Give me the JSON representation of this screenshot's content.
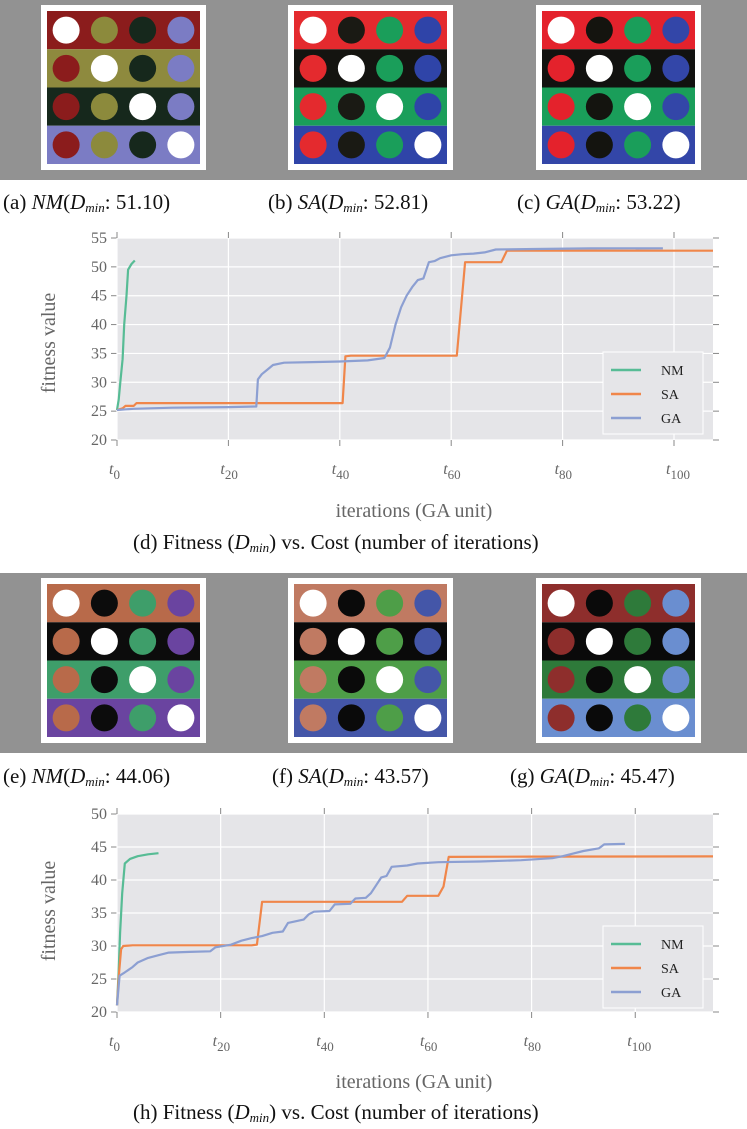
{
  "top": {
    "panels": [
      {
        "id": "a",
        "prefix": "(a) ",
        "method": "NM",
        "dmin": ": 51.10)",
        "rows": [
          {
            "bg": "#8B1C1C",
            "circles": [
              "#FFFFFF",
              "#8C8A3C",
              "#16281C",
              "#7B7CC4"
            ]
          },
          {
            "bg": "#8E8A3E",
            "circles": [
              "#8B1C1C",
              "#FFFFFF",
              "#16281C",
              "#7B7CC4"
            ]
          },
          {
            "bg": "#16281C",
            "circles": [
              "#8B1C1C",
              "#8C8A3C",
              "#FFFFFF",
              "#7B7CC4"
            ]
          },
          {
            "bg": "#7B7CC4",
            "circles": [
              "#8B1C1C",
              "#8C8A3C",
              "#16281C",
              "#FFFFFF"
            ]
          }
        ]
      },
      {
        "id": "b",
        "prefix": "(b) ",
        "method": "SA",
        "dmin": ": 52.81)",
        "rows": [
          {
            "bg": "#E42A2E",
            "circles": [
              "#FFFFFF",
              "#1A1A14",
              "#1A9E5A",
              "#2F44A8"
            ]
          },
          {
            "bg": "#141410",
            "circles": [
              "#E42A2E",
              "#FFFFFF",
              "#1A9E5A",
              "#2F44A8"
            ]
          },
          {
            "bg": "#1A9E5A",
            "circles": [
              "#E42A2E",
              "#1A1A14",
              "#FFFFFF",
              "#2F44A8"
            ]
          },
          {
            "bg": "#2F44A8",
            "circles": [
              "#E42A2E",
              "#1A1A14",
              "#1A9E5A",
              "#FFFFFF"
            ]
          }
        ]
      },
      {
        "id": "c",
        "prefix": "(c) ",
        "method": "GA",
        "dmin": ": 53.22)",
        "rows": [
          {
            "bg": "#E4222C",
            "circles": [
              "#FFFFFF",
              "#14140F",
              "#1A9E5A",
              "#3346A8"
            ]
          },
          {
            "bg": "#121210",
            "circles": [
              "#E4222C",
              "#FFFFFF",
              "#1A9E5A",
              "#3346A8"
            ]
          },
          {
            "bg": "#1A9E5A",
            "circles": [
              "#E4222C",
              "#14140F",
              "#FFFFFF",
              "#3346A8"
            ]
          },
          {
            "bg": "#3346A8",
            "circles": [
              "#E4222C",
              "#14140F",
              "#1A9E5A",
              "#FFFFFF"
            ]
          }
        ]
      }
    ]
  },
  "bottom": {
    "panels": [
      {
        "id": "e",
        "prefix": "(e) ",
        "method": "NM",
        "dmin": ": 44.06)",
        "rows": [
          {
            "bg": "#B86A4A",
            "circles": [
              "#FFFFFF",
              "#0C0C0C",
              "#3E9E6A",
              "#6A44A0"
            ]
          },
          {
            "bg": "#0C0C0C",
            "circles": [
              "#B86A4A",
              "#FFFFFF",
              "#3E9E6A",
              "#6A44A0"
            ]
          },
          {
            "bg": "#3E9E6A",
            "circles": [
              "#B86A4A",
              "#0C0C0C",
              "#FFFFFF",
              "#6A44A0"
            ]
          },
          {
            "bg": "#6A44A0",
            "circles": [
              "#B86A4A",
              "#0C0C0C",
              "#3E9E6A",
              "#FFFFFF"
            ]
          }
        ]
      },
      {
        "id": "f",
        "prefix": "(f) ",
        "method": "SA",
        "dmin": ": 43.57)",
        "rows": [
          {
            "bg": "#C07A62",
            "circles": [
              "#FFFFFF",
              "#0A0A0A",
              "#4E9E48",
              "#4456A8"
            ]
          },
          {
            "bg": "#0A0A0A",
            "circles": [
              "#C07A62",
              "#FFFFFF",
              "#4E9E48",
              "#4456A8"
            ]
          },
          {
            "bg": "#4E9E48",
            "circles": [
              "#C07A62",
              "#0A0A0A",
              "#FFFFFF",
              "#4456A8"
            ]
          },
          {
            "bg": "#4456A8",
            "circles": [
              "#C07A62",
              "#0A0A0A",
              "#4E9E48",
              "#FFFFFF"
            ]
          }
        ]
      },
      {
        "id": "g",
        "prefix": "(g) ",
        "method": "GA",
        "dmin": ": 45.47)",
        "rows": [
          {
            "bg": "#8E2E2C",
            "circles": [
              "#FFFFFF",
              "#0A0A0A",
              "#2E7A3A",
              "#6A8ED0"
            ]
          },
          {
            "bg": "#0A0A0A",
            "circles": [
              "#8E2E2C",
              "#FFFFFF",
              "#2E7A3A",
              "#6A8ED0"
            ]
          },
          {
            "bg": "#2E7A3A",
            "circles": [
              "#8E2E2C",
              "#0A0A0A",
              "#FFFFFF",
              "#6A8ED0"
            ]
          },
          {
            "bg": "#6A8ED0",
            "circles": [
              "#8E2E2C",
              "#0A0A0A",
              "#2E7A3A",
              "#FFFFFF"
            ]
          }
        ]
      }
    ]
  },
  "captions": {
    "d": {
      "prefix": "(d) Fitness (",
      "sym": "D",
      "sub": "min",
      "suffix": ") vs. Cost (number of iterations)"
    },
    "h": {
      "prefix": "(h) Fitness (",
      "sym": "D",
      "sub": "min",
      "suffix": ") vs. Cost (number of iterations)"
    },
    "dmin_sym": "D",
    "dmin_sub": "min",
    "open_paren": "("
  },
  "colors": {
    "NM": "#57BC95",
    "SA": "#F0864A",
    "GA": "#8C9FD2",
    "plot_bg": "#E5E5E8"
  },
  "chart_data": [
    {
      "id": "d",
      "type": "line",
      "xlabel": "iterations (GA unit)",
      "ylabel": "fitness value",
      "xlim": [
        0,
        107
      ],
      "ylim": [
        20,
        55
      ],
      "yticks": [
        20,
        25,
        30,
        35,
        40,
        45,
        50,
        55
      ],
      "xticks": [
        {
          "v": 0,
          "sub": "0"
        },
        {
          "v": 20,
          "sub": "20"
        },
        {
          "v": 40,
          "sub": "40"
        },
        {
          "v": 60,
          "sub": "60"
        },
        {
          "v": 80,
          "sub": "80"
        },
        {
          "v": 100,
          "sub": "100"
        }
      ],
      "tick_base": "t",
      "legend": "center-right",
      "series": [
        {
          "name": "NM",
          "color": "#57BC95",
          "points": [
            [
              0,
              25.2
            ],
            [
              0.3,
              27
            ],
            [
              0.6,
              30
            ],
            [
              1,
              34
            ],
            [
              1.3,
              40
            ],
            [
              1.7,
              45
            ],
            [
              2,
              49.5
            ],
            [
              2.6,
              50.5
            ],
            [
              3.2,
              51.1
            ]
          ]
        },
        {
          "name": "SA",
          "color": "#F0864A",
          "points": [
            [
              0,
              25.2
            ],
            [
              1,
              25.5
            ],
            [
              1.5,
              25.9
            ],
            [
              3,
              25.9
            ],
            [
              3.5,
              26.4
            ],
            [
              40.5,
              26.4
            ],
            [
              41,
              34.5
            ],
            [
              42,
              34.6
            ],
            [
              61,
              34.6
            ],
            [
              62.5,
              50.8
            ],
            [
              69,
              50.8
            ],
            [
              70,
              52.8
            ],
            [
              107,
              52.8
            ]
          ]
        },
        {
          "name": "GA",
          "color": "#8C9FD2",
          "points": [
            [
              0,
              25.2
            ],
            [
              3,
              25.4
            ],
            [
              6,
              25.5
            ],
            [
              10,
              25.6
            ],
            [
              20,
              25.7
            ],
            [
              25,
              25.8
            ],
            [
              25.3,
              30.5
            ],
            [
              26,
              31.4
            ],
            [
              27,
              32.2
            ],
            [
              28,
              33
            ],
            [
              30,
              33.4
            ],
            [
              35,
              33.5
            ],
            [
              40,
              33.6
            ],
            [
              45,
              33.8
            ],
            [
              48,
              34.2
            ],
            [
              49,
              36
            ],
            [
              50,
              40
            ],
            [
              51,
              43
            ],
            [
              52,
              45
            ],
            [
              53,
              46.5
            ],
            [
              54,
              47.7
            ],
            [
              55,
              48
            ],
            [
              56,
              50.8
            ],
            [
              57,
              51
            ],
            [
              58,
              51.5
            ],
            [
              60,
              52
            ],
            [
              62,
              52.2
            ],
            [
              64,
              52.3
            ],
            [
              66,
              52.5
            ],
            [
              68,
              53
            ],
            [
              75,
              53.1
            ],
            [
              85,
              53.2
            ],
            [
              98,
              53.22
            ]
          ]
        }
      ]
    },
    {
      "id": "h",
      "type": "line",
      "xlabel": "iterations (GA unit)",
      "ylabel": "fitness value",
      "xlim": [
        0,
        115
      ],
      "ylim": [
        20,
        50
      ],
      "yticks": [
        20,
        25,
        30,
        35,
        40,
        45,
        50
      ],
      "xticks": [
        {
          "v": 0,
          "sub": "0"
        },
        {
          "v": 20,
          "sub": "20"
        },
        {
          "v": 40,
          "sub": "40"
        },
        {
          "v": 60,
          "sub": "60"
        },
        {
          "v": 80,
          "sub": "80"
        },
        {
          "v": 100,
          "sub": "100"
        }
      ],
      "tick_base": "t",
      "legend": "bottom-right",
      "series": [
        {
          "name": "NM",
          "color": "#57BC95",
          "points": [
            [
              0,
              21
            ],
            [
              0.3,
              26
            ],
            [
              0.6,
              32
            ],
            [
              1,
              38
            ],
            [
              1.5,
              42.5
            ],
            [
              2.5,
              43.2
            ],
            [
              4,
              43.6
            ],
            [
              6,
              43.9
            ],
            [
              8,
              44.06
            ]
          ]
        },
        {
          "name": "SA",
          "color": "#F0864A",
          "points": [
            [
              0,
              21
            ],
            [
              0.4,
              26
            ],
            [
              0.8,
              29.5
            ],
            [
              1.2,
              30
            ],
            [
              3,
              30.1
            ],
            [
              26,
              30.1
            ],
            [
              27,
              30.2
            ],
            [
              28,
              36.7
            ],
            [
              40,
              36.7
            ],
            [
              55,
              36.7
            ],
            [
              56,
              37.6
            ],
            [
              62,
              37.6
            ],
            [
              63,
              39
            ],
            [
              64,
              43.5
            ],
            [
              80,
              43.55
            ],
            [
              115,
              43.57
            ]
          ]
        },
        {
          "name": "GA",
          "color": "#8C9FD2",
          "points": [
            [
              0,
              21
            ],
            [
              0.5,
              25.5
            ],
            [
              1.5,
              26
            ],
            [
              3,
              26.8
            ],
            [
              4,
              27.5
            ],
            [
              6,
              28.2
            ],
            [
              8,
              28.6
            ],
            [
              10,
              29
            ],
            [
              14,
              29.1
            ],
            [
              18,
              29.2
            ],
            [
              19,
              29.8
            ],
            [
              22,
              30.2
            ],
            [
              24,
              30.8
            ],
            [
              26,
              31.2
            ],
            [
              28,
              31.5
            ],
            [
              30,
              32
            ],
            [
              32,
              32.2
            ],
            [
              33,
              33.5
            ],
            [
              36,
              34
            ],
            [
              37,
              34.8
            ],
            [
              38,
              35.2
            ],
            [
              41,
              35.3
            ],
            [
              42,
              36.3
            ],
            [
              45,
              36.4
            ],
            [
              46,
              37.2
            ],
            [
              48,
              37.3
            ],
            [
              49,
              38
            ],
            [
              50,
              39.2
            ],
            [
              51,
              40.4
            ],
            [
              52,
              40.6
            ],
            [
              53,
              42
            ],
            [
              56,
              42.2
            ],
            [
              58,
              42.5
            ],
            [
              62,
              42.7
            ],
            [
              70,
              42.8
            ],
            [
              78,
              43
            ],
            [
              84,
              43.3
            ],
            [
              86,
              43.6
            ],
            [
              88,
              44
            ],
            [
              90,
              44.4
            ],
            [
              93,
              44.8
            ],
            [
              94,
              45.4
            ],
            [
              98,
              45.47
            ]
          ]
        }
      ]
    }
  ]
}
